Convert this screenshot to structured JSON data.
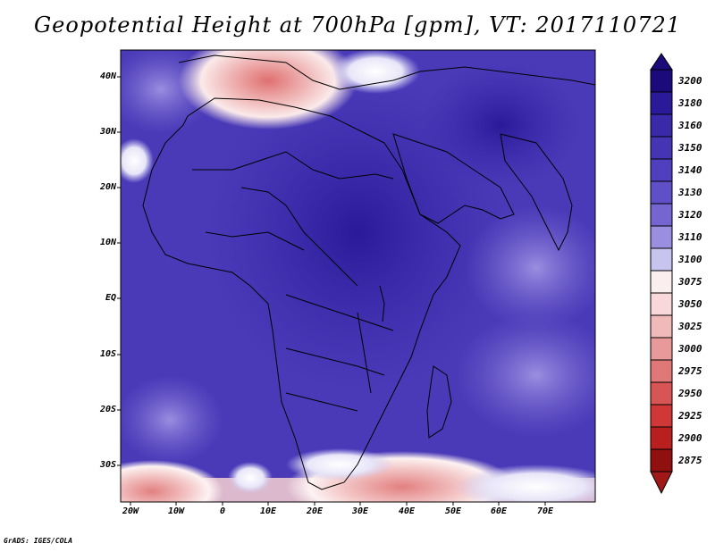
{
  "title": "Geopotential Height at 700hPa [gpm], VT: 2017110721",
  "footer": "GrADS: IGES/COLA",
  "lat_labels": [
    "40N",
    "30N",
    "20N",
    "10N",
    "EQ",
    "10S",
    "20S",
    "30S"
  ],
  "lon_labels": [
    "20W",
    "10W",
    "0",
    "10E",
    "20E",
    "30E",
    "40E",
    "50E",
    "60E",
    "70E"
  ],
  "colorbar": {
    "levels": [
      "3200",
      "3180",
      "3160",
      "3150",
      "3140",
      "3130",
      "3120",
      "3110",
      "3100",
      "3075",
      "3050",
      "3025",
      "3000",
      "2975",
      "2950",
      "2925",
      "2900",
      "2875"
    ],
    "colors": [
      "#1a0a7a",
      "#2a1a9a",
      "#3a2aaa",
      "#4535b5",
      "#5040c0",
      "#6050c8",
      "#7565d0",
      "#9a8ee0",
      "#c8c4f0",
      "#fbeeee",
      "#f8d8d8",
      "#f0baba",
      "#e89a9a",
      "#e07878",
      "#d85555",
      "#d03838",
      "#b82020",
      "#901010"
    ]
  }
}
